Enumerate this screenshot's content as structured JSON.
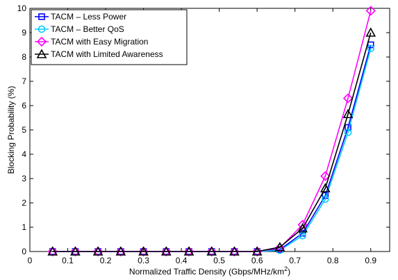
{
  "chart_data": {
    "type": "line",
    "xlabel": "Normalized Traffic Density (Gbps/MHz/km",
    "xlabel_superscript": "2",
    "xlabel_suffix": ")",
    "ylabel": "Blocking Probability (%)",
    "xlim": [
      0,
      0.95
    ],
    "ylim": [
      0,
      10
    ],
    "xticks": [
      0,
      0.1,
      0.2,
      0.3,
      0.4,
      0.5,
      0.6,
      0.7,
      0.8,
      0.9
    ],
    "xtick_labels": [
      "0",
      "0.1",
      "0.2",
      "0.3",
      "0.4",
      "0.5",
      "0.6",
      "0.7",
      "0.8",
      "0.9"
    ],
    "yticks": [
      0,
      1,
      2,
      3,
      4,
      5,
      6,
      7,
      8,
      9,
      10
    ],
    "ytick_labels": [
      "0",
      "1",
      "2",
      "3",
      "4",
      "5",
      "6",
      "7",
      "8",
      "9",
      "10"
    ],
    "grid": false,
    "legend_position": "top-left",
    "x": [
      0.06,
      0.12,
      0.18,
      0.24,
      0.3,
      0.36,
      0.42,
      0.48,
      0.54,
      0.6,
      0.66,
      0.72,
      0.78,
      0.84,
      0.9
    ],
    "series": [
      {
        "name": "TACM – Less Power",
        "color": "#0000ff",
        "marker": "square",
        "values": [
          0,
          0,
          0,
          0,
          0,
          0,
          0,
          0,
          0,
          0,
          0.08,
          0.75,
          2.3,
          5.1,
          8.5
        ]
      },
      {
        "name": "TACM – Better QoS",
        "color": "#00ccff",
        "marker": "circle",
        "values": [
          0,
          0,
          0,
          0,
          0,
          0,
          0,
          0,
          0,
          0,
          0.05,
          0.65,
          2.15,
          4.9,
          8.35
        ]
      },
      {
        "name": "TACM with Easy Migration",
        "color": "#ff00ff",
        "marker": "diamond",
        "values": [
          0,
          0,
          0,
          0,
          0,
          0,
          0,
          0,
          0,
          0,
          0.15,
          1.1,
          3.1,
          6.3,
          9.9
        ]
      },
      {
        "name": "TACM with Limited Awareness",
        "color": "#000000",
        "marker": "triangle",
        "values": [
          0,
          0,
          0,
          0,
          0,
          0,
          0,
          0,
          0,
          0,
          0.18,
          0.95,
          2.6,
          5.65,
          9.0
        ]
      }
    ]
  }
}
